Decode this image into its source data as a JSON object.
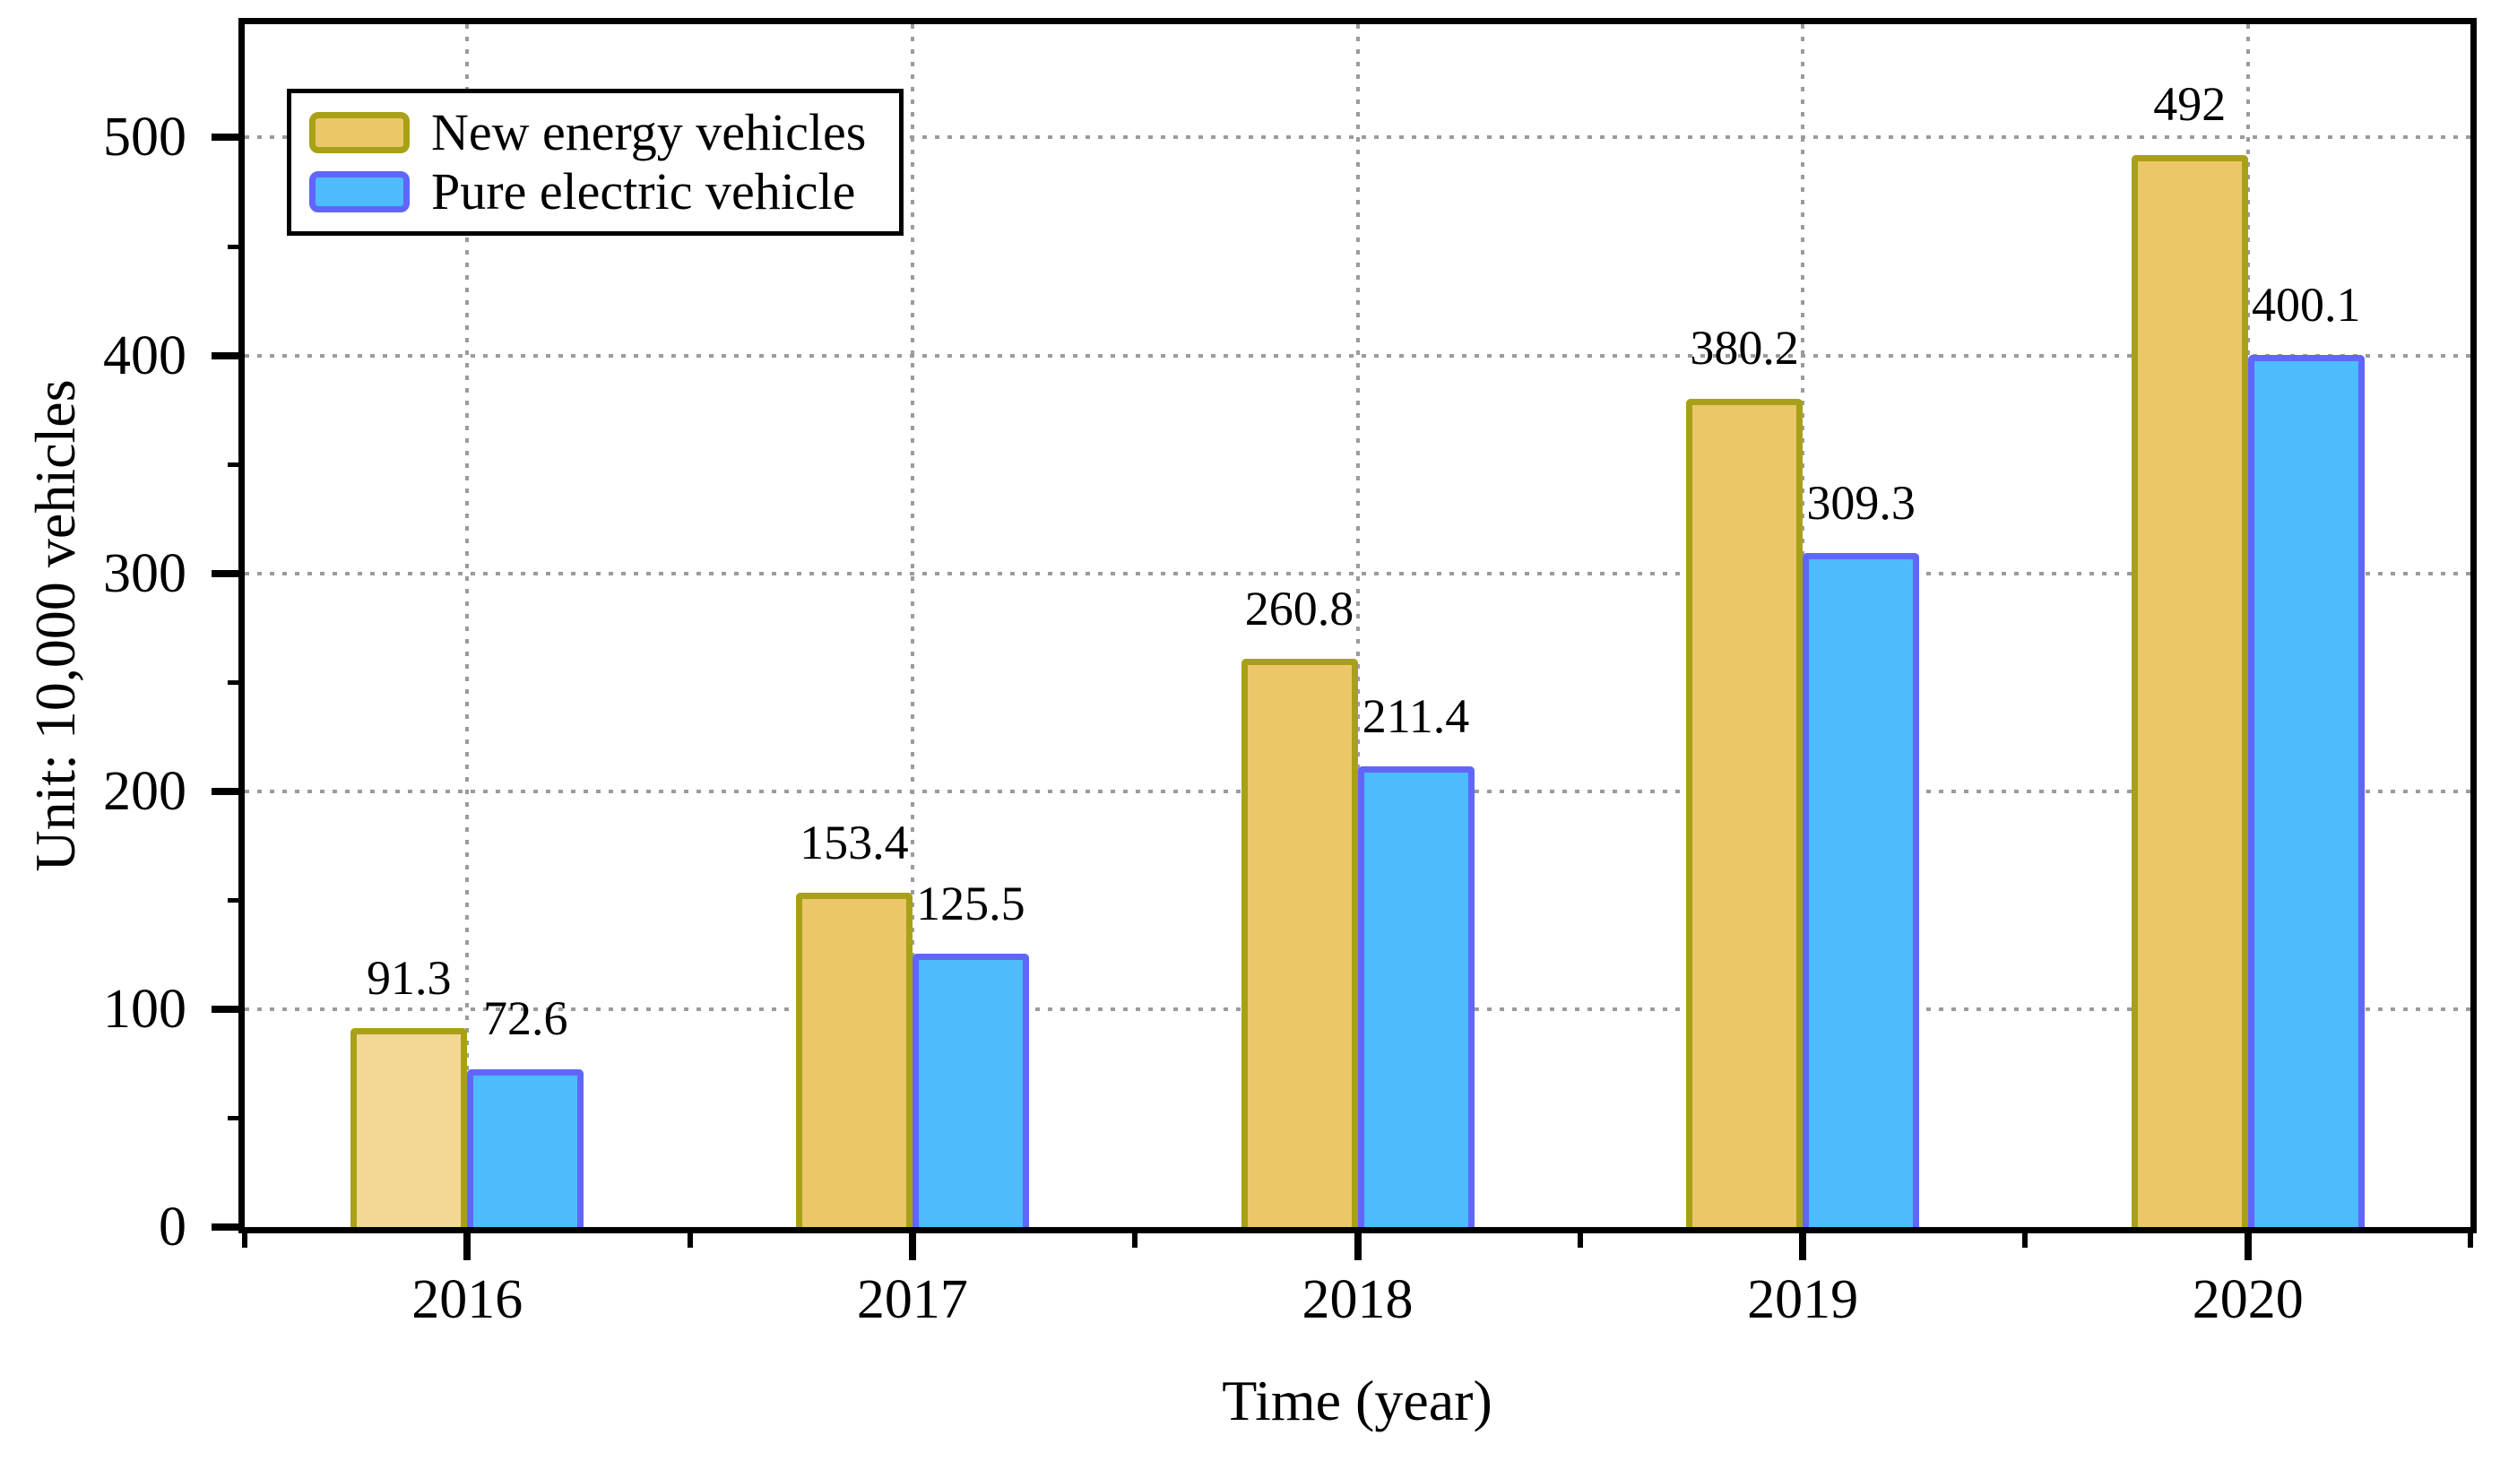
{
  "figure": {
    "background": "#ffffff",
    "frame_color": "#000000",
    "grid_color": "#9b9b9b"
  },
  "chart_data": {
    "type": "bar",
    "title": "",
    "xlabel": "Time (year)",
    "ylabel": "Unit: 10,000 vehicles",
    "categories": [
      "2016",
      "2017",
      "2018",
      "2019",
      "2020"
    ],
    "series": [
      {
        "name": "New energy vehicles",
        "values": [
          91.3,
          153.4,
          260.8,
          380.2,
          492
        ],
        "fill": "#ecc76a",
        "first_bar_fill": "#f3d795",
        "stroke": "#a8a117"
      },
      {
        "name": "Pure electric vehicle",
        "values": [
          72.6,
          125.5,
          211.4,
          309.3,
          400.1
        ],
        "fill": "#4dbcfc",
        "stroke": "#6166fb"
      }
    ],
    "y_ticks": [
      0,
      100,
      200,
      300,
      400,
      500
    ],
    "y_minor_ticks": [
      50,
      150,
      250,
      350,
      450
    ],
    "ylim": [
      0,
      552
    ],
    "grid": {
      "horizontal": true,
      "vertical": true,
      "style": "dotted",
      "color": "#9b9b9b"
    },
    "legend": {
      "position": "top-left",
      "entries": [
        "New energy vehicles",
        "Pure electric vehicle"
      ]
    }
  }
}
